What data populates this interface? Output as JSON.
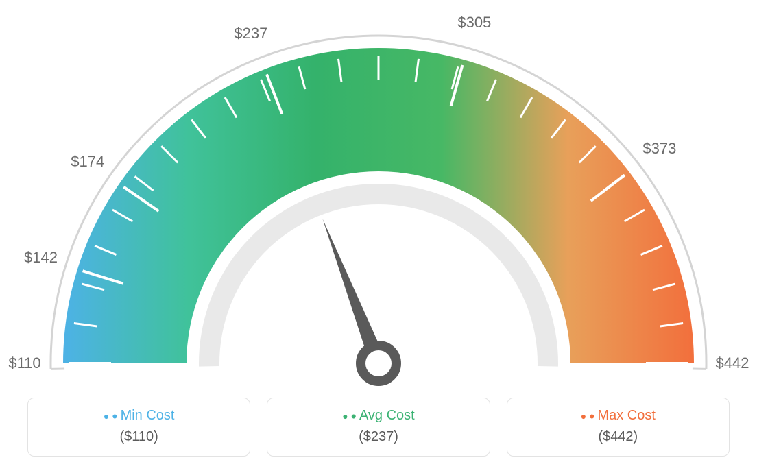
{
  "gauge": {
    "type": "gauge",
    "min": 110,
    "max": 442,
    "avg": 237,
    "needle_value": 237,
    "tick_values": [
      110,
      142,
      174,
      237,
      305,
      373,
      442
    ],
    "currency_prefix": "$",
    "arc_gradient_colors": [
      "#4db2e6",
      "#40c29a",
      "#34b26b",
      "#47b865",
      "#e8a05a",
      "#f26f3c"
    ],
    "outer_ring_color": "#d4d4d4",
    "inner_ring_color": "#e9e9e9",
    "tick_color": "#ffffff",
    "needle_color": "#5a5a5a",
    "tick_label_color": "#6b6b6b",
    "tick_label_fontsize": 22,
    "background_color": "#ffffff"
  },
  "legend": {
    "cards": [
      {
        "label": "Min Cost",
        "value": "($110)",
        "color": "#4db2e6"
      },
      {
        "label": "Avg Cost",
        "value": "($237)",
        "color": "#3bb273"
      },
      {
        "label": "Max Cost",
        "value": "($442)",
        "color": "#f26f3c"
      }
    ],
    "card_border_color": "#e3e3e3",
    "card_border_radius": 10,
    "label_fontsize": 20,
    "value_fontsize": 20,
    "value_color": "#5a5a5a"
  }
}
